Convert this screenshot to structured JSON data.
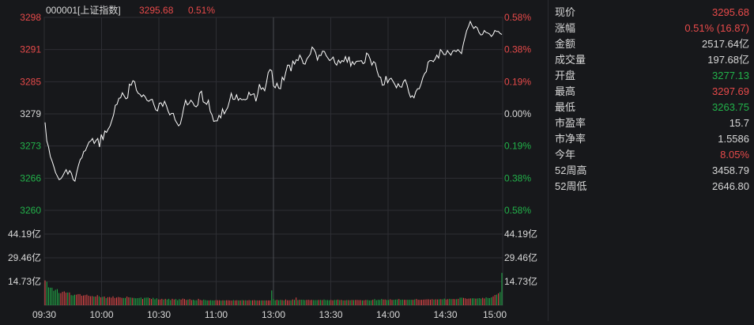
{
  "header": {
    "code_name": "000001[上证指数]",
    "price": "3295.68",
    "change_pct": "0.51%"
  },
  "colors": {
    "up": "#e84a4a",
    "down": "#22b24a",
    "line": "#ffffff",
    "grid": "#2d2e33",
    "axis_text": "#d8d8d8"
  },
  "chart_data": [
    {
      "type": "line",
      "y_left_ticks": [
        "3298",
        "3291",
        "3285",
        "3279",
        "3273",
        "3266",
        "3260"
      ],
      "y_right_ticks": [
        "0.58%",
        "0.38%",
        "0.19%",
        "0.00%",
        "0.19%",
        "0.38%",
        "0.58%"
      ],
      "x_ticks": [
        "09:30",
        "10:00",
        "10:30",
        "11:00",
        "13:00",
        "13:30",
        "14:00",
        "14:30",
        "15:00"
      ],
      "ylim": [
        3260.0,
        3298.4
      ],
      "baseline": 3279.2,
      "grid": true,
      "values": [
        3277.5,
        3273.8,
        3272.6,
        3270.7,
        3269.8,
        3268.7,
        3267.5,
        3266.8,
        3266.1,
        3266.3,
        3266.8,
        3267.5,
        3268.1,
        3267.2,
        3267.9,
        3267.4,
        3266.1,
        3265.8,
        3267.5,
        3268.9,
        3270.1,
        3270.5,
        3271.7,
        3271.9,
        3272.8,
        3273.6,
        3273.8,
        3274.3,
        3273.3,
        3273.9,
        3274.3,
        3272.6,
        3275.1,
        3274.1,
        3275.8,
        3275.5,
        3276.2,
        3276.8,
        3277.9,
        3279.0,
        3280.9,
        3281.1,
        3282.3,
        3282.4,
        3283.4,
        3282.8,
        3282.2,
        3282.4,
        3285.1,
        3284.9,
        3285.8,
        3285.6,
        3283.9,
        3283.3,
        3283.1,
        3282.6,
        3283.0,
        3282.6,
        3281.9,
        3281.7,
        3282.0,
        3282.1,
        3281.0,
        3280.0,
        3279.8,
        3281.3,
        3281.4,
        3280.7,
        3281.7,
        3280.9,
        3279.8,
        3279.0,
        3279.3,
        3279.3,
        3278.0,
        3277.4,
        3276.8,
        3277.2,
        3278.7,
        3280.5,
        3281.9,
        3281.0,
        3281.3,
        3281.9,
        3281.5,
        3280.8,
        3280.6,
        3281.0,
        3283.3,
        3283.7,
        3281.6,
        3281.4,
        3281.1,
        3281.9,
        3279.7,
        3279.0,
        3277.7,
        3277.8,
        3277.8,
        3278.9,
        3278.4,
        3280.2,
        3279.2,
        3279.9,
        3280.5,
        3281.8,
        3283.3,
        3282.1,
        3282.1,
        3283.0,
        3281.9,
        3282.3,
        3282.0,
        3282.1,
        3282.0,
        3282.2,
        3283.5,
        3282.9,
        3283.1,
        3283.2,
        3281.7,
        3283.1,
        3285.1,
        3284.1,
        3284.4,
        3283.8,
        3285.4,
        3287.4,
        3288.0,
        3287.8,
        3284.8,
        3284.4,
        3285.3,
        3284.3,
        3284.2,
        3286.5,
        3285.9,
        3287.5,
        3288.9,
        3288.9,
        3287.7,
        3289.7,
        3289.1,
        3290.0,
        3289.8,
        3290.9,
        3290.2,
        3289.2,
        3289.1,
        3290.1,
        3290.6,
        3291.1,
        3292.5,
        3292.1,
        3291.4,
        3289.9,
        3290.9,
        3290.8,
        3291.7,
        3291.6,
        3290.8,
        3290.3,
        3289.8,
        3290.1,
        3290.5,
        3289.3,
        3288.9,
        3289.9,
        3289.3,
        3289.8,
        3289.6,
        3290.6,
        3289.5,
        3290.6,
        3288.7,
        3289.6,
        3289.0,
        3289.6,
        3289.7,
        3289.7,
        3289.8,
        3289.2,
        3289.4,
        3291.3,
        3291.0,
        3290.1,
        3288.9,
        3289.6,
        3289.3,
        3287.7,
        3286.6,
        3286.5,
        3284.9,
        3285.0,
        3286.7,
        3285.4,
        3286.1,
        3286.3,
        3285.7,
        3285.1,
        3284.4,
        3285.2,
        3284.6,
        3284.5,
        3285.6,
        3286.0,
        3285.0,
        3283.5,
        3282.5,
        3282.8,
        3282.4,
        3283.6,
        3284.2,
        3284.2,
        3285.1,
        3286.4,
        3287.2,
        3287.6,
        3289.5,
        3289.8,
        3289.8,
        3289.6,
        3290.1,
        3290.9,
        3290.3,
        3292.0,
        3291.6,
        3291.0,
        3291.0,
        3291.8,
        3291.3,
        3290.9,
        3291.7,
        3291.8,
        3291.6,
        3292.0,
        3291.6,
        3291.2,
        3293.0,
        3294.4,
        3295.8,
        3296.6,
        3297.6,
        3296.8,
        3296.2,
        3296.6,
        3296.3,
        3295.4,
        3294.9,
        3295.0,
        3295.8,
        3295.4,
        3295.3,
        3295.1,
        3294.6,
        3295.0,
        3295.8,
        3295.6,
        3295.6,
        3295.2,
        3295.0
      ]
    },
    {
      "type": "bar",
      "y_ticks": [
        "44.19亿",
        "29.46亿",
        "14.73亿"
      ],
      "ylim": [
        0,
        44.19
      ],
      "grid": true,
      "values": [
        15.4,
        14.6,
        11.1,
        10.9,
        10.9,
        9.0,
        9.6,
        10.0,
        7.6,
        7.5,
        8.3,
        8.6,
        7.8,
        7.9,
        7.9,
        6.3,
        6.1,
        6.5,
        6.6,
        6.9,
        6.9,
        5.9,
        6.1,
        6.3,
        6.6,
        5.9,
        5.6,
        5.7,
        5.4,
        5.4,
        6.3,
        5.5,
        4.9,
        5.2,
        5.4,
        4.4,
        5.0,
        5.1,
        4.7,
        5.5,
        4.5,
        4.8,
        5.1,
        4.9,
        4.6,
        4.5,
        4.5,
        5.4,
        4.9,
        4.8,
        4.6,
        4.5,
        4.3,
        4.4,
        4.5,
        4.8,
        3.9,
        4.6,
        4.7,
        4.8,
        4.4,
        3.9,
        4.6,
        3.7,
        4.3,
        3.6,
        3.6,
        4.0,
        3.6,
        4.0,
        3.6,
        4.0,
        3.2,
        4.0,
        3.6,
        3.8,
        3.1,
        3.8,
        3.5,
        4.1,
        3.8,
        3.3,
        3.5,
        3.8,
        3.2,
        3.4,
        3.1,
        3.1,
        4.0,
        3.3,
        3.1,
        3.5,
        3.2,
        3.0,
        3.0,
        3.1,
        3.0,
        3.0,
        3.2,
        3.1,
        3.1,
        2.9,
        3.1,
        3.0,
        3.1,
        3.1,
        3.0,
        2.9,
        3.2,
        3.0,
        3.1,
        3.0,
        3.0,
        3.2,
        3.1,
        3.1,
        3.0,
        3.2,
        3.0,
        3.1,
        3.2,
        3.0,
        3.0,
        3.0,
        3.0,
        3.0,
        3.0,
        3.0,
        3.0,
        3.0,
        9.2,
        3.8,
        3.1,
        3.4,
        3.1,
        3.3,
        3.2,
        3.0,
        3.6,
        3.1,
        3.1,
        3.1,
        3.6,
        3.3,
        4.8,
        3.2,
        3.4,
        3.4,
        3.4,
        3.2,
        3.3,
        3.4,
        3.2,
        3.3,
        3.2,
        3.2,
        3.2,
        3.3,
        3.3,
        3.2,
        3.6,
        3.2,
        3.2,
        3.1,
        3.3,
        3.1,
        3.3,
        3.3,
        3.5,
        3.2,
        3.3,
        3.0,
        3.1,
        3.2,
        3.2,
        3.1,
        3.3,
        3.2,
        3.3,
        3.3,
        3.2,
        3.2,
        3.0,
        3.1,
        3.3,
        3.3,
        3.0,
        3.1,
        3.4,
        3.8,
        3.1,
        3.4,
        3.3,
        3.9,
        3.6,
        3.6,
        3.3,
        3.3,
        3.7,
        3.3,
        3.4,
        3.5,
        3.6,
        3.9,
        3.4,
        3.5,
        3.4,
        3.4,
        3.4,
        3.4,
        3.4,
        3.4,
        3.6,
        3.9,
        3.4,
        3.4,
        3.4,
        3.5,
        3.6,
        3.7,
        3.7,
        3.5,
        3.8,
        3.5,
        3.7,
        3.6,
        3.7,
        3.8,
        3.7,
        4.1,
        3.6,
        3.8,
        4.0,
        3.8,
        3.9,
        3.8,
        3.8,
        4.0,
        4.7,
        4.7,
        4.5,
        4.3,
        4.0,
        4.1,
        4.2,
        4.3,
        4.3,
        4.1,
        4.2,
        4.4,
        4.1,
        4.6,
        4.2,
        4.9,
        4.5,
        4.4,
        4.9,
        5.5,
        6.4,
        6.6,
        7.4,
        8.2,
        20.1
      ]
    }
  ],
  "stats": [
    {
      "label": "现价",
      "value": "3295.68",
      "dir": "up"
    },
    {
      "label": "涨幅",
      "value": "0.51% (16.87)",
      "dir": "up"
    },
    {
      "label": "金额",
      "value": "2517.64亿",
      "dir": "flat"
    },
    {
      "label": "成交量",
      "value": "197.68亿",
      "dir": "flat"
    },
    {
      "label": "开盘",
      "value": "3277.13",
      "dir": "down"
    },
    {
      "label": "最高",
      "value": "3297.69",
      "dir": "up"
    },
    {
      "label": "最低",
      "value": "3263.75",
      "dir": "down"
    },
    {
      "label": "市盈率",
      "value": "15.7",
      "dir": "flat"
    },
    {
      "label": "市净率",
      "value": "1.5586",
      "dir": "flat"
    },
    {
      "label": "今年",
      "value": "8.05%",
      "dir": "up"
    },
    {
      "label": "52周高",
      "value": "3458.79",
      "dir": "flat"
    },
    {
      "label": "52周低",
      "value": "2646.80",
      "dir": "flat"
    }
  ]
}
